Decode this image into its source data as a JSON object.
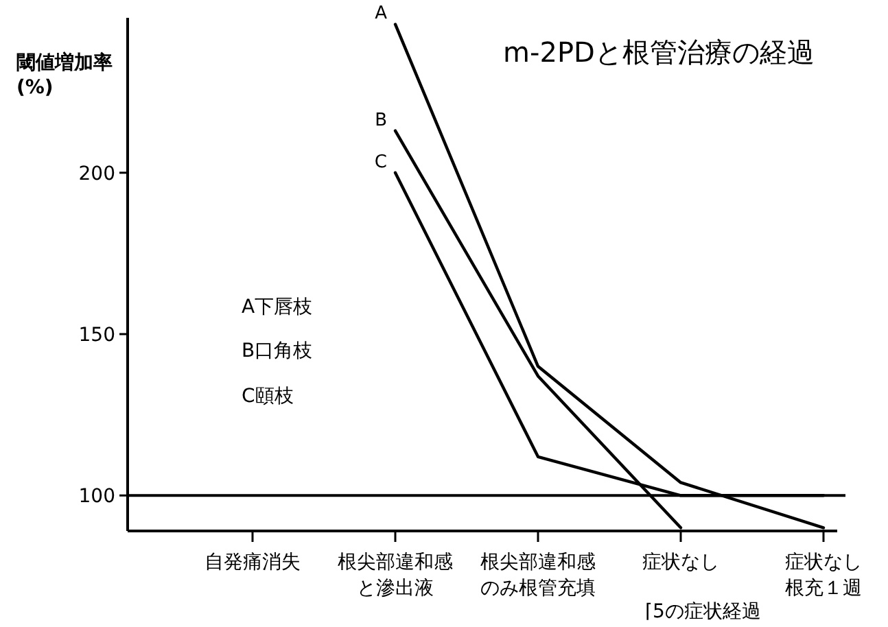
{
  "chart_data": {
    "type": "line",
    "title": "m-2PDと根管治療の経過",
    "ylabel": "閾値増加率\n(%)",
    "categories": [
      "自発痛消失",
      "根尖部違和感と滲出液",
      "根尖部違和感のみ根管充填",
      "症状なし",
      "症状なし根充１週"
    ],
    "ylim": [
      89,
      248
    ],
    "yticks": [
      100,
      150,
      200
    ],
    "series": [
      {
        "name": "A",
        "color": "#000000",
        "values": [
          null,
          246,
          140,
          104,
          90
        ]
      },
      {
        "name": "B",
        "color": "#000000",
        "values": [
          null,
          213,
          137,
          90,
          null
        ]
      },
      {
        "name": "C",
        "color": "#000000",
        "values": [
          null,
          200,
          112,
          100,
          100
        ]
      }
    ],
    "ref_lines": [
      {
        "axis": "y",
        "value": 100,
        "color": "#000000"
      }
    ],
    "annotations": [
      "A下唇枝",
      "B口角枝",
      "C頤枝",
      "⌈5の症状経過"
    ]
  }
}
